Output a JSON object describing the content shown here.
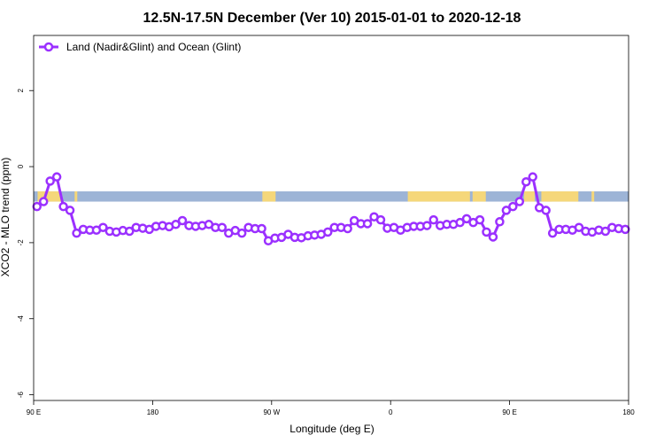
{
  "chart_data": {
    "type": "line",
    "title": "12.5N-17.5N December (Ver 10)   2015-01-01 to 2020-12-18",
    "xlabel": "Longitude (deg E)",
    "ylabel": "XCO2 - MLO trend (ppm)",
    "xlim": [
      90,
      540
    ],
    "ylim": [
      -6.15,
      3.45
    ],
    "x_ticks": [
      {
        "value": 90,
        "label": "90 E"
      },
      {
        "value": 180,
        "label": "180"
      },
      {
        "value": 270,
        "label": "90 W"
      },
      {
        "value": 360,
        "label": "0"
      },
      {
        "value": 450,
        "label": "90 E"
      },
      {
        "value": 540,
        "label": "180"
      }
    ],
    "y_ticks": [
      {
        "value": 2,
        "label": "2"
      },
      {
        "value": 0,
        "label": "0"
      },
      {
        "value": -2,
        "label": "-2"
      },
      {
        "value": -4,
        "label": "-4"
      },
      {
        "value": -6,
        "label": "-6"
      }
    ],
    "grid": false,
    "legend_position": "top-left",
    "background_band": {
      "y_range": [
        -0.92,
        -0.65
      ],
      "ocean_color": "#9db4d6",
      "land_color": "#f5d77a",
      "land_segments": [
        [
          93,
          111
        ],
        [
          121,
          123
        ],
        [
          263,
          273
        ],
        [
          373,
          420
        ],
        [
          422,
          432
        ],
        [
          461,
          469
        ],
        [
          474,
          482
        ],
        [
          478,
          502
        ],
        [
          512,
          514
        ]
      ]
    },
    "series": [
      {
        "name": "Land (Nadir&Glint) and Ocean (Glint)",
        "color": "#9b30ff",
        "x": [
          92.5,
          97.5,
          102.5,
          107.5,
          112.5,
          117.5,
          122.5,
          127.5,
          132.5,
          137.5,
          142.5,
          147.5,
          152.5,
          157.5,
          162.5,
          167.5,
          172.5,
          177.5,
          182.5,
          187.5,
          192.5,
          197.5,
          202.5,
          207.5,
          212.5,
          217.5,
          222.5,
          227.5,
          232.5,
          237.5,
          242.5,
          247.5,
          252.5,
          257.5,
          262.5,
          267.5,
          272.5,
          277.5,
          282.5,
          287.5,
          292.5,
          297.5,
          302.5,
          307.5,
          312.5,
          317.5,
          322.5,
          327.5,
          332.5,
          337.5,
          342.5,
          347.5,
          352.5,
          357.5,
          362.5,
          367.5,
          372.5,
          377.5,
          382.5,
          387.5,
          392.5,
          397.5,
          402.5,
          407.5,
          412.5,
          417.5,
          422.5,
          427.5,
          432.5,
          437.5,
          442.5,
          447.5,
          452.5,
          457.5,
          462.5,
          467.5,
          472.5,
          477.5,
          482.5,
          487.5,
          492.5,
          497.5,
          502.5,
          507.5,
          512.5,
          517.5,
          522.5,
          527.5,
          532.5,
          537.5
        ],
        "values": [
          -1.05,
          -0.92,
          -0.38,
          -0.27,
          -1.05,
          -1.15,
          -1.75,
          -1.65,
          -1.67,
          -1.67,
          -1.6,
          -1.7,
          -1.72,
          -1.68,
          -1.7,
          -1.6,
          -1.62,
          -1.65,
          -1.57,
          -1.55,
          -1.58,
          -1.52,
          -1.42,
          -1.55,
          -1.57,
          -1.55,
          -1.52,
          -1.6,
          -1.6,
          -1.75,
          -1.68,
          -1.75,
          -1.6,
          -1.63,
          -1.63,
          -1.95,
          -1.88,
          -1.86,
          -1.78,
          -1.86,
          -1.87,
          -1.82,
          -1.8,
          -1.78,
          -1.72,
          -1.6,
          -1.6,
          -1.63,
          -1.42,
          -1.5,
          -1.5,
          -1.32,
          -1.4,
          -1.62,
          -1.6,
          -1.67,
          -1.6,
          -1.57,
          -1.57,
          -1.55,
          -1.4,
          -1.55,
          -1.52,
          -1.52,
          -1.47,
          -1.37,
          -1.47,
          -1.4,
          -1.72,
          -1.85,
          -1.45,
          -1.15,
          -1.05,
          -0.92,
          -0.4,
          -0.27,
          -1.08,
          -1.15,
          -1.75,
          -1.65,
          -1.65,
          -1.67,
          -1.6,
          -1.7,
          -1.72,
          -1.67,
          -1.7,
          -1.6,
          -1.63,
          -1.65
        ]
      }
    ]
  }
}
